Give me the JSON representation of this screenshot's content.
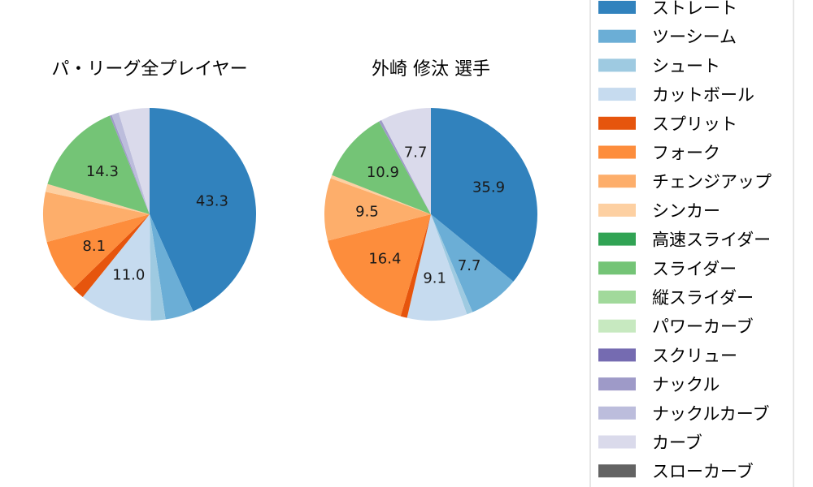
{
  "chart_data": [
    {
      "type": "pie",
      "title": "パ・リーグ全プレイヤー",
      "start_angle_deg": 90,
      "direction": "clockwise",
      "slices": [
        {
          "label": "ストレート",
          "value": 43.3,
          "pct_label": "43.3"
        },
        {
          "label": "ツーシーム",
          "value": 4.3,
          "pct_label": ""
        },
        {
          "label": "シュート",
          "value": 2.2,
          "pct_label": ""
        },
        {
          "label": "カットボール",
          "value": 11.0,
          "pct_label": "11.0"
        },
        {
          "label": "スプリット",
          "value": 1.9,
          "pct_label": ""
        },
        {
          "label": "フォーク",
          "value": 8.1,
          "pct_label": "8.1"
        },
        {
          "label": "チェンジアップ",
          "value": 7.6,
          "pct_label": ""
        },
        {
          "label": "シンカー",
          "value": 1.2,
          "pct_label": ""
        },
        {
          "label": "高速スライダー",
          "value": 0.0,
          "pct_label": ""
        },
        {
          "label": "スライダー",
          "value": 14.3,
          "pct_label": "14.3"
        },
        {
          "label": "縦スライダー",
          "value": 0.0,
          "pct_label": ""
        },
        {
          "label": "パワーカーブ",
          "value": 0.0,
          "pct_label": ""
        },
        {
          "label": "スクリュー",
          "value": 0.0,
          "pct_label": ""
        },
        {
          "label": "ナックル",
          "value": 0.3,
          "pct_label": ""
        },
        {
          "label": "ナックルカーブ",
          "value": 1.1,
          "pct_label": ""
        },
        {
          "label": "カーブ",
          "value": 4.7,
          "pct_label": ""
        },
        {
          "label": "スローカーブ",
          "value": 0.0,
          "pct_label": ""
        }
      ]
    },
    {
      "type": "pie",
      "title": "外崎 修汰 選手",
      "start_angle_deg": 90,
      "direction": "clockwise",
      "slices": [
        {
          "label": "ストレート",
          "value": 35.9,
          "pct_label": "35.9"
        },
        {
          "label": "ツーシーム",
          "value": 7.7,
          "pct_label": "7.7"
        },
        {
          "label": "シュート",
          "value": 0.9,
          "pct_label": ""
        },
        {
          "label": "カットボール",
          "value": 9.1,
          "pct_label": "9.1"
        },
        {
          "label": "スプリット",
          "value": 1.0,
          "pct_label": ""
        },
        {
          "label": "フォーク",
          "value": 16.4,
          "pct_label": "16.4"
        },
        {
          "label": "チェンジアップ",
          "value": 9.5,
          "pct_label": "9.5"
        },
        {
          "label": "シンカー",
          "value": 0.5,
          "pct_label": ""
        },
        {
          "label": "高速スライダー",
          "value": 0.0,
          "pct_label": ""
        },
        {
          "label": "スライダー",
          "value": 10.9,
          "pct_label": "10.9"
        },
        {
          "label": "縦スライダー",
          "value": 0.0,
          "pct_label": ""
        },
        {
          "label": "パワーカーブ",
          "value": 0.0,
          "pct_label": ""
        },
        {
          "label": "スクリュー",
          "value": 0.0,
          "pct_label": ""
        },
        {
          "label": "ナックル",
          "value": 0.4,
          "pct_label": ""
        },
        {
          "label": "ナックルカーブ",
          "value": 0.0,
          "pct_label": ""
        },
        {
          "label": "カーブ",
          "value": 7.7,
          "pct_label": "7.7"
        },
        {
          "label": "スローカーブ",
          "value": 0.0,
          "pct_label": ""
        }
      ]
    }
  ],
  "legend": {
    "placement": "right",
    "items": [
      {
        "label": "ストレート",
        "color": "#3182bd"
      },
      {
        "label": "ツーシーム",
        "color": "#6baed6"
      },
      {
        "label": "シュート",
        "color": "#9ecae1"
      },
      {
        "label": "カットボール",
        "color": "#c6dbef"
      },
      {
        "label": "スプリット",
        "color": "#e6550d"
      },
      {
        "label": "フォーク",
        "color": "#fd8d3c"
      },
      {
        "label": "チェンジアップ",
        "color": "#fdae6b"
      },
      {
        "label": "シンカー",
        "color": "#fdd0a2"
      },
      {
        "label": "高速スライダー",
        "color": "#31a354"
      },
      {
        "label": "スライダー",
        "color": "#74c476"
      },
      {
        "label": "縦スライダー",
        "color": "#a1d99b"
      },
      {
        "label": "パワーカーブ",
        "color": "#c7e9c0"
      },
      {
        "label": "スクリュー",
        "color": "#756bb1"
      },
      {
        "label": "ナックル",
        "color": "#9e9ac8"
      },
      {
        "label": "ナックルカーブ",
        "color": "#bcbddc"
      },
      {
        "label": "カーブ",
        "color": "#dadaeb"
      },
      {
        "label": "スローカーブ",
        "color": "#636363"
      }
    ]
  }
}
